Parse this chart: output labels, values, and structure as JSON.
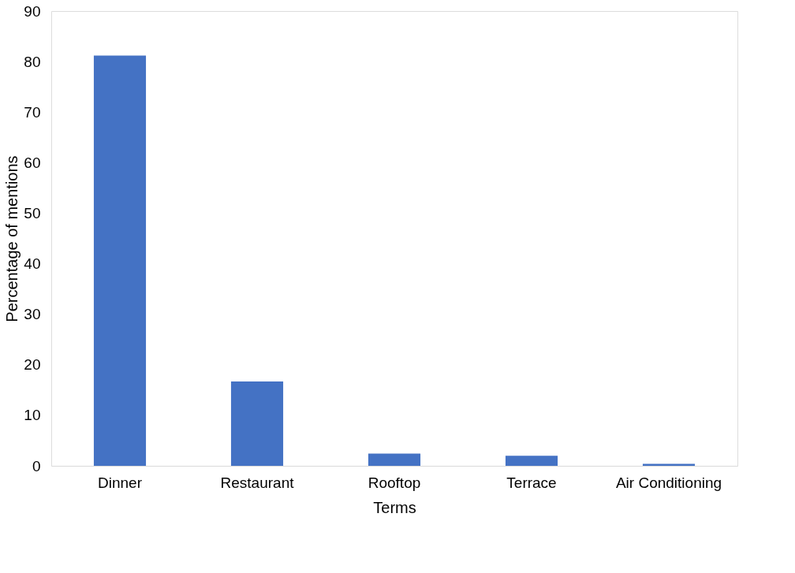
{
  "chart_data": {
    "type": "bar",
    "xlabel": "Terms",
    "ylabel": "Percentage of mentions",
    "categories": [
      "Dinner",
      "Restaurant",
      "Rooftop",
      "Terrace",
      "Air Conditioning"
    ],
    "values": [
      81.2,
      16.7,
      2.4,
      2.0,
      0.4
    ],
    "color": "#4472c4",
    "ylim": [
      0,
      90
    ],
    "yticks": [
      0,
      10,
      20,
      30,
      40,
      50,
      60,
      70,
      80,
      90
    ],
    "grid": false
  }
}
